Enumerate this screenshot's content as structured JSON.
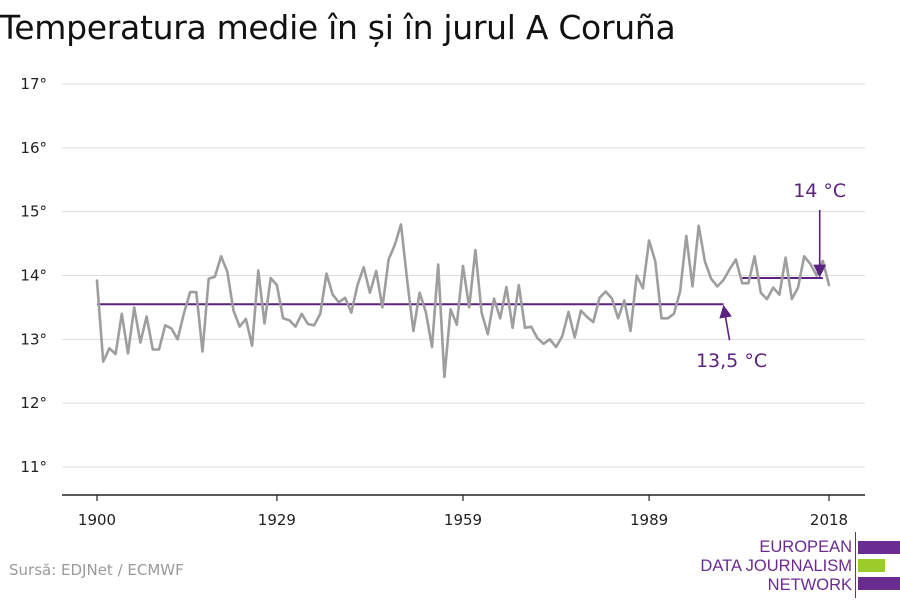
{
  "title": "Temperatura medie în și în jurul A Coruña",
  "source": "Sursă: EDJNet / ECMWF",
  "logo": {
    "lines": [
      "EUROPEAN",
      "DATA JOURNALISM",
      "NETWORK"
    ],
    "colors": {
      "purple": "#6b2c91",
      "green": "#9ccc2a"
    }
  },
  "colors": {
    "line": "#9e9e9e",
    "reference": "#5b2280",
    "grid": "#dddddd",
    "axis": "#222222"
  },
  "chart_data": {
    "type": "line",
    "title": "Temperatura medie în și în jurul A Coruña",
    "xlabel": "",
    "ylabel": "",
    "xlim": [
      1900,
      2018
    ],
    "ylim": [
      11,
      17
    ],
    "xticks": [
      1900,
      1929,
      1959,
      1989,
      2018
    ],
    "yticks": [
      {
        "value": 11,
        "label": "11°"
      },
      {
        "value": 12,
        "label": "12°"
      },
      {
        "value": 13,
        "label": "13°"
      },
      {
        "value": 14,
        "label": "14°"
      },
      {
        "value": 15,
        "label": "15°"
      },
      {
        "value": 16,
        "label": "16°"
      },
      {
        "value": 17,
        "label": "17°"
      }
    ],
    "grid": true,
    "series": [
      {
        "x": [
          1900,
          1901,
          1902,
          1903,
          1904,
          1905,
          1906,
          1907,
          1908,
          1909,
          1910,
          1911,
          1912,
          1913,
          1914,
          1915,
          1916,
          1917,
          1918,
          1919,
          1920,
          1921,
          1922,
          1923,
          1924,
          1925,
          1926,
          1927,
          1928,
          1929,
          1930,
          1931,
          1932,
          1933,
          1934,
          1935,
          1936,
          1937,
          1938,
          1939,
          1940,
          1941,
          1942,
          1943,
          1944,
          1945,
          1946,
          1947,
          1948,
          1949,
          1950,
          1951,
          1952,
          1953,
          1954,
          1955,
          1956,
          1957,
          1958,
          1959,
          1960,
          1961,
          1962,
          1963,
          1964,
          1965,
          1966,
          1967,
          1968,
          1969,
          1970,
          1971,
          1972,
          1973,
          1974,
          1975,
          1976,
          1977,
          1978,
          1979,
          1980,
          1981,
          1982,
          1983,
          1984,
          1985,
          1986,
          1987,
          1988,
          1989,
          1990,
          1991,
          1992,
          1993,
          1994,
          1995,
          1996,
          1997,
          1998,
          1999,
          2000,
          2001,
          2002,
          2003,
          2004,
          2005,
          2006,
          2007,
          2008,
          2009,
          2010,
          2011,
          2012,
          2013,
          2014,
          2015,
          2016,
          2017,
          2018
        ],
        "y": [
          13.92,
          12.65,
          12.86,
          12.77,
          13.4,
          12.78,
          13.5,
          12.95,
          13.36,
          12.84,
          12.84,
          13.22,
          13.17,
          13.0,
          13.4,
          13.74,
          13.74,
          12.81,
          13.95,
          13.98,
          14.3,
          14.06,
          13.45,
          13.2,
          13.32,
          12.9,
          14.08,
          13.25,
          13.96,
          13.85,
          13.33,
          13.3,
          13.2,
          13.4,
          13.24,
          13.22,
          13.4,
          14.03,
          13.7,
          13.58,
          13.65,
          13.42,
          13.85,
          14.13,
          13.73,
          14.07,
          13.5,
          14.25,
          14.48,
          14.8,
          13.92,
          13.13,
          13.73,
          13.43,
          12.88,
          14.17,
          12.41,
          13.47,
          13.23,
          14.15,
          13.5,
          14.4,
          13.42,
          13.08,
          13.64,
          13.33,
          13.82,
          13.18,
          13.85,
          13.18,
          13.2,
          13.02,
          12.93,
          13.0,
          12.88,
          13.05,
          13.43,
          13.03,
          13.45,
          13.35,
          13.27,
          13.65,
          13.75,
          13.64,
          13.33,
          13.61,
          13.13,
          14.0,
          13.8,
          14.55,
          14.22,
          13.33,
          13.33,
          13.4,
          13.75,
          14.62,
          13.83,
          14.78,
          14.22,
          13.95,
          13.83,
          13.93,
          14.1,
          14.25,
          13.88,
          13.88,
          14.3,
          13.73,
          13.63,
          13.81,
          13.7,
          14.28,
          13.63,
          13.81,
          14.3,
          14.18,
          14.0,
          14.23,
          13.85
        ]
      }
    ],
    "reference_lines": [
      {
        "label": "13,5 °C",
        "value": 13.55,
        "x_start": 1900,
        "x_end": 2001
      },
      {
        "label": "14 °C",
        "value": 13.96,
        "x_start": 2004,
        "x_end": 2017
      }
    ]
  }
}
